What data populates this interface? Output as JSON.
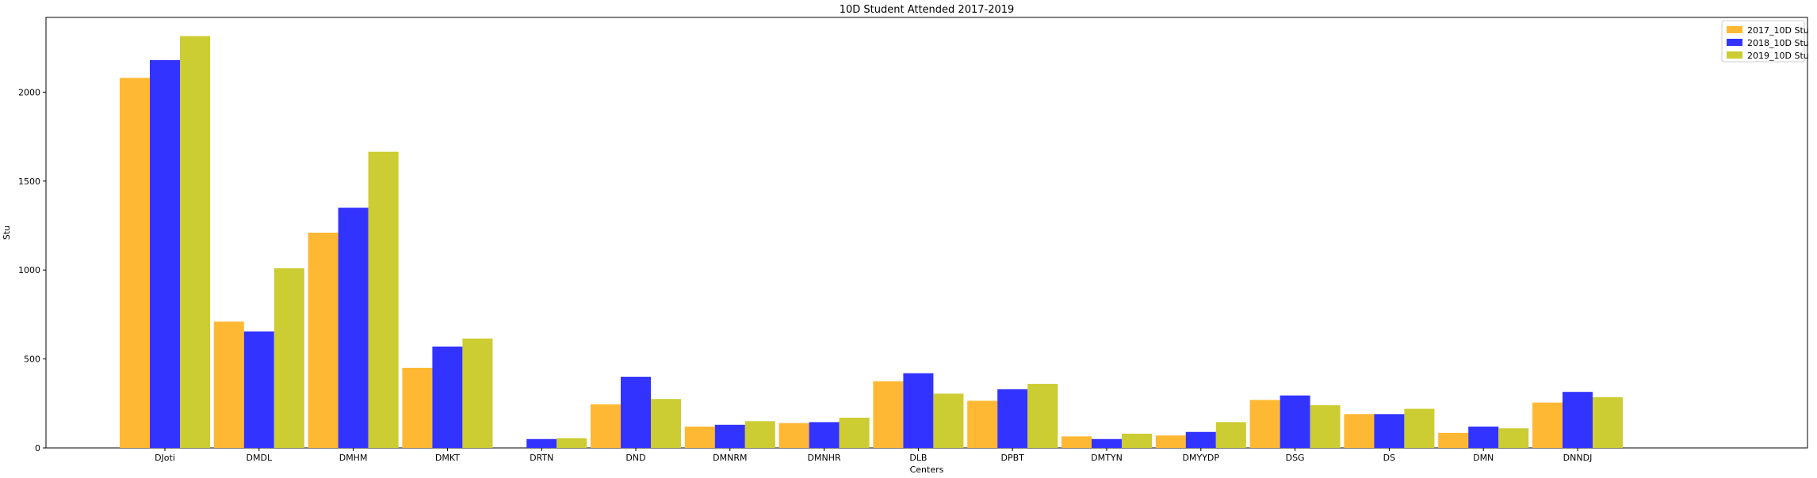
{
  "chart_data": {
    "type": "bar",
    "title": "10D Student Attended 2017-2019",
    "xlabel": "Centers",
    "ylabel": "Stu",
    "categories": [
      "DJoti",
      "DMDL",
      "DMHM",
      "DMKT",
      "DRTN",
      "DND",
      "DMNRM",
      "DMNHR",
      "DLB",
      "DPBT",
      "DMTYN",
      "DMYYDP",
      "DSG",
      "DS",
      "DMN",
      "DNNDJ"
    ],
    "series": [
      {
        "name": "2017_10D Stu",
        "color": "#FFB833",
        "values": [
          2080,
          710,
          1210,
          450,
          0,
          245,
          120,
          140,
          375,
          265,
          65,
          70,
          270,
          190,
          85,
          255
        ]
      },
      {
        "name": "2018_10D Stu",
        "color": "#3333FF",
        "values": [
          2180,
          655,
          1350,
          570,
          50,
          400,
          130,
          145,
          420,
          330,
          50,
          90,
          295,
          190,
          120,
          315
        ]
      },
      {
        "name": "2019_10D Stu",
        "color": "#CCCC33",
        "values": [
          2315,
          1010,
          1665,
          615,
          55,
          275,
          150,
          170,
          305,
          360,
          80,
          145,
          240,
          220,
          110,
          285
        ]
      }
    ],
    "ylim": [
      0,
      2420
    ],
    "yticks": [
      0,
      500,
      1000,
      1500,
      2000
    ],
    "legend_position": "top-right",
    "grid": false
  }
}
